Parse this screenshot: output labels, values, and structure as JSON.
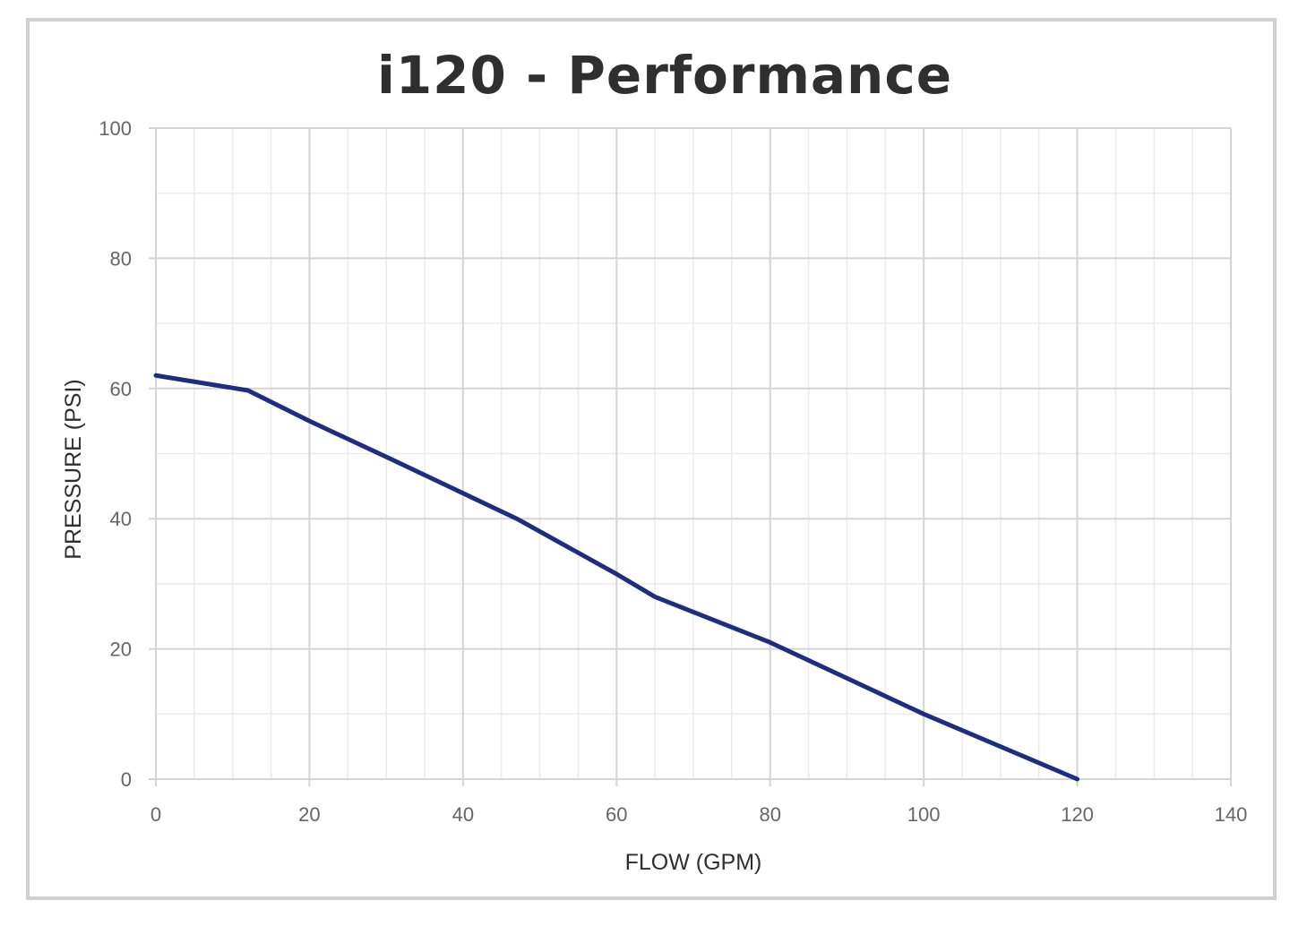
{
  "chart_data": {
    "type": "line",
    "title": "i120 - Performance",
    "xlabel": "FLOW (GPM)",
    "ylabel": "PRESSURE (PSI)",
    "xlim": [
      0,
      140
    ],
    "ylim": [
      0,
      100
    ],
    "x_ticks": [
      "0",
      "20",
      "40",
      "60",
      "80",
      "100",
      "120",
      "140"
    ],
    "y_ticks": [
      "0",
      "20",
      "40",
      "60",
      "80",
      "100"
    ],
    "grid": true,
    "series": [
      {
        "color": "#1c2d82",
        "x": [
          0,
          12,
          20,
          30,
          47,
          60,
          65,
          80,
          100,
          120
        ],
        "y": [
          62,
          59.7,
          55,
          49.5,
          40,
          31.5,
          28,
          21,
          10,
          0
        ]
      }
    ]
  },
  "colors": {
    "frame": "#d0d0d0",
    "grid_major": "#d4d4d4",
    "grid_minor": "#ebebeb",
    "line": "#1c2d82",
    "title": "#2f2f2f"
  }
}
